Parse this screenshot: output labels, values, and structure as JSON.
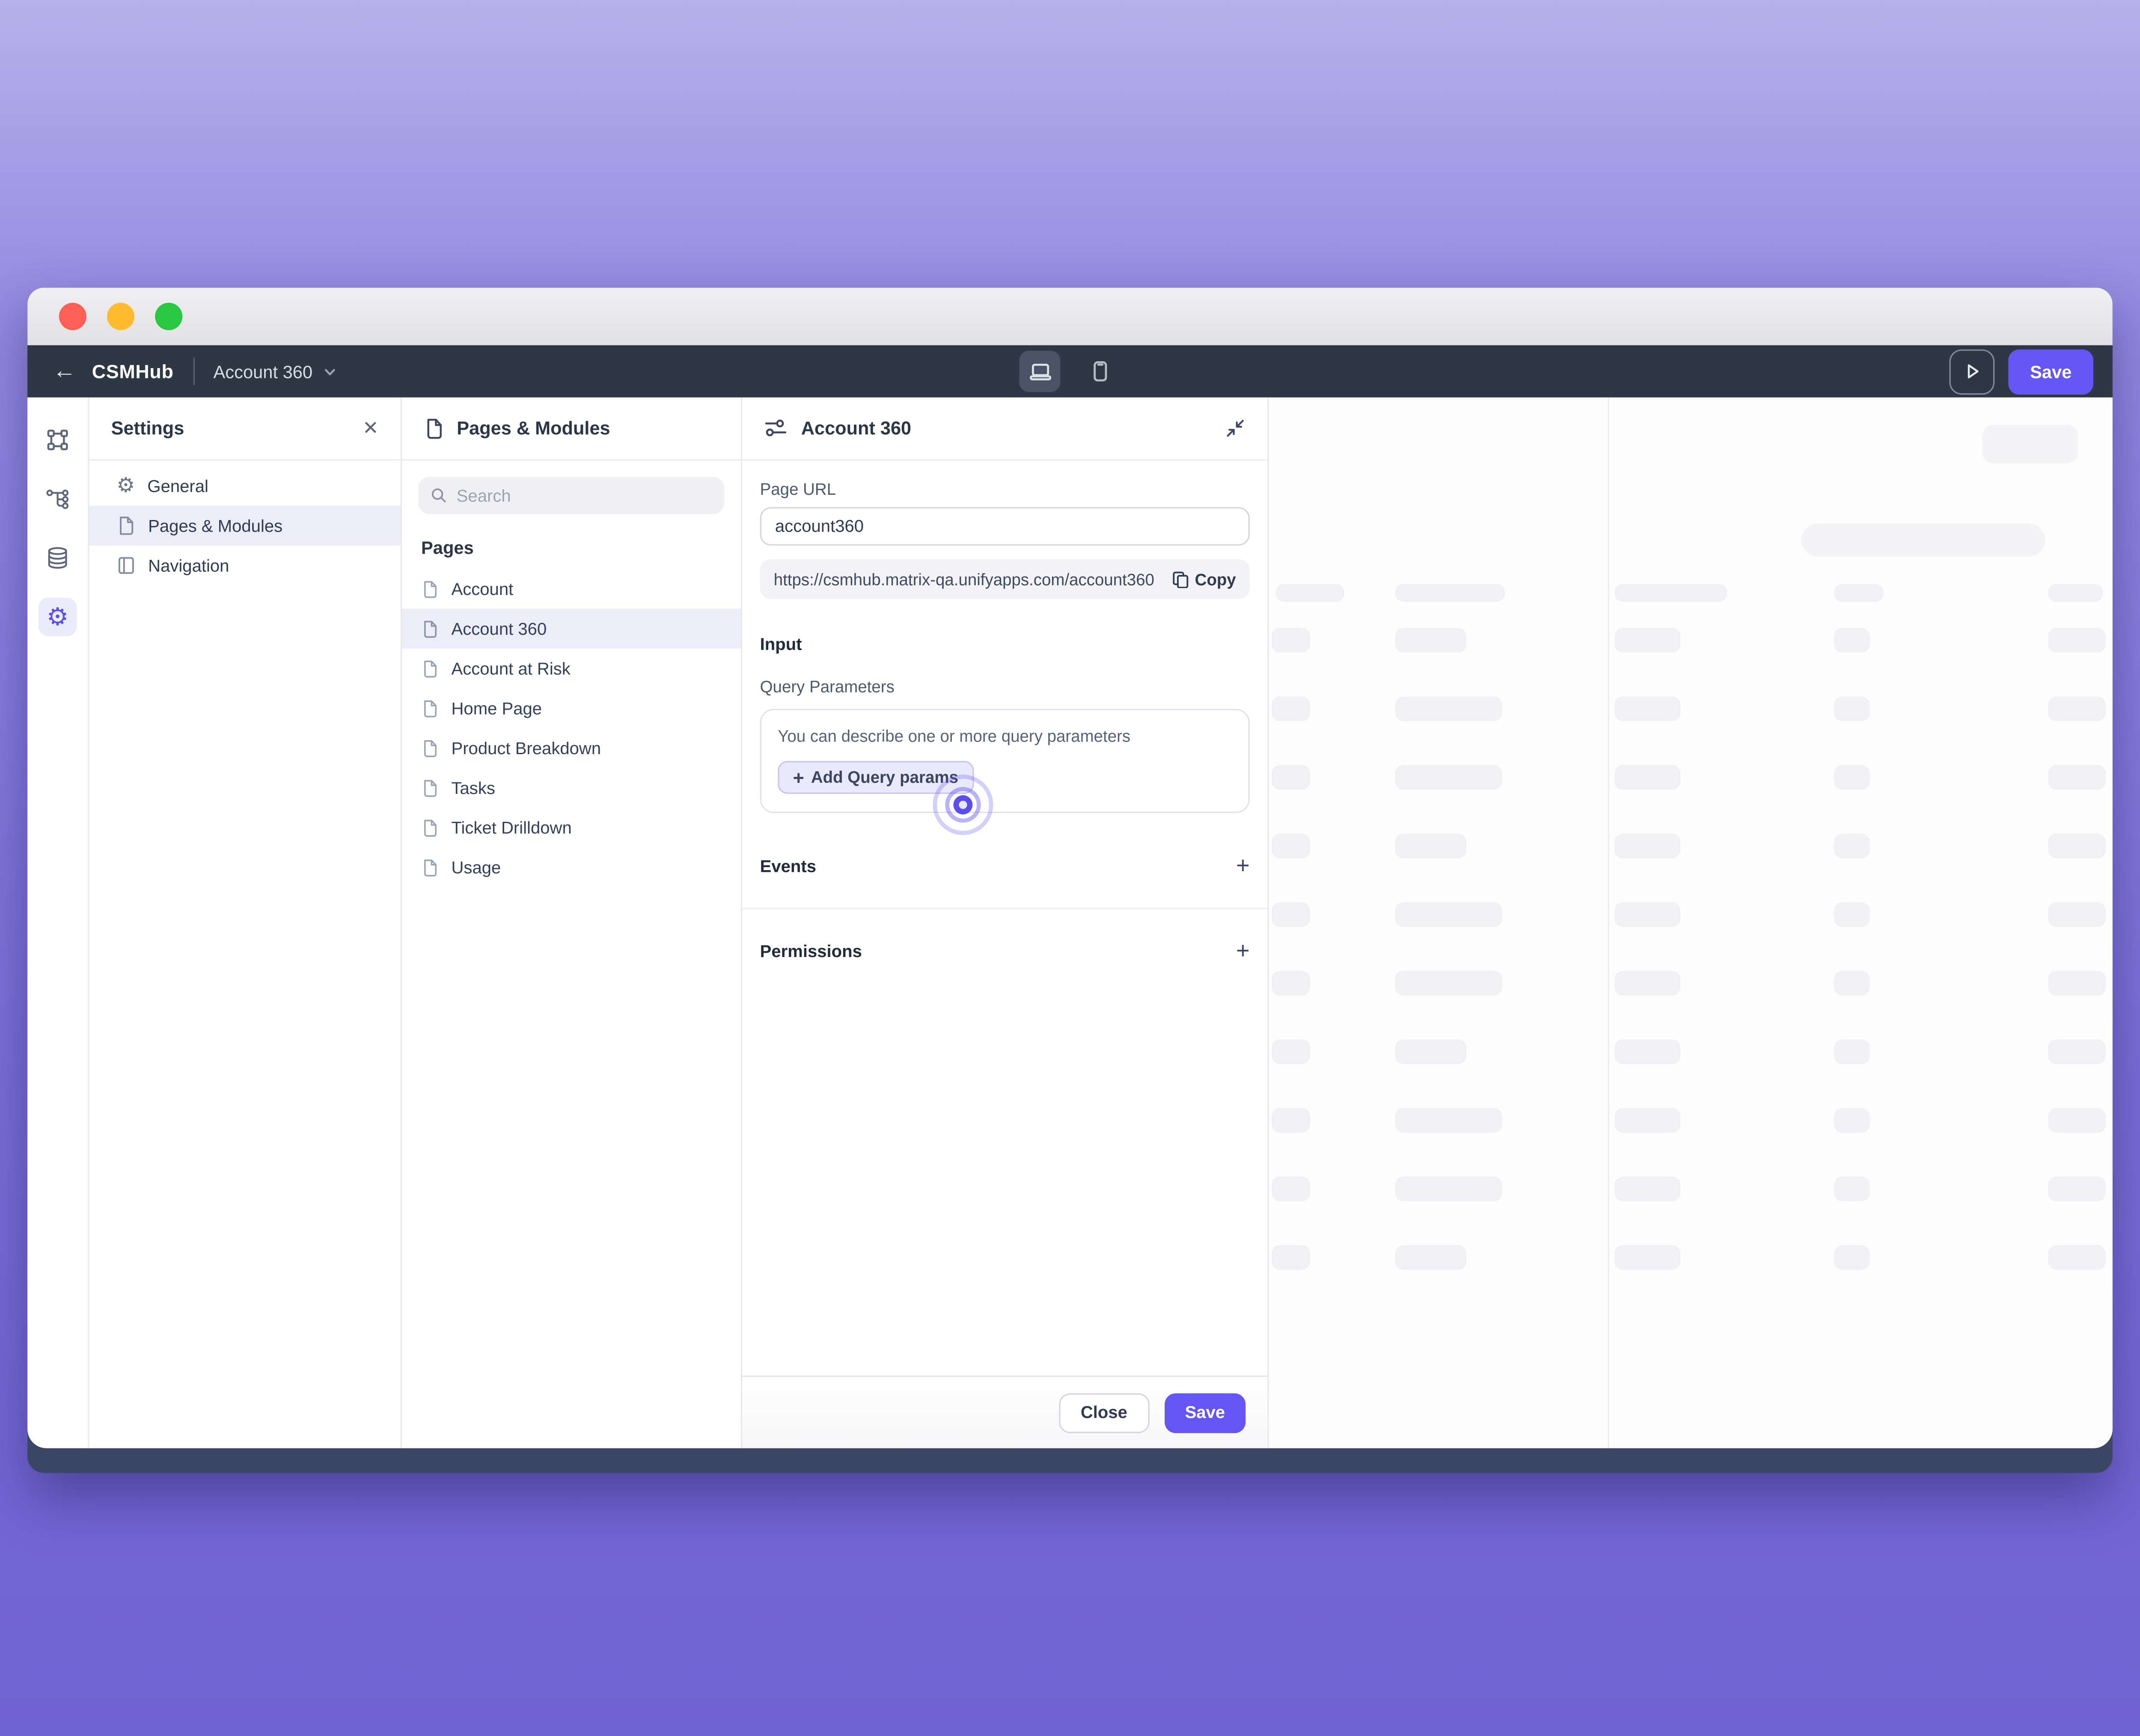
{
  "toolbar": {
    "app_name": "CSMHub",
    "page_selector": "Account 360",
    "save_label": "Save"
  },
  "settings_panel": {
    "title": "Settings",
    "items": [
      {
        "label": "General",
        "icon": "gear-icon"
      },
      {
        "label": "Pages & Modules",
        "icon": "file-icon"
      },
      {
        "label": "Navigation",
        "icon": "layout-icon"
      }
    ],
    "selected_item": "Pages & Modules"
  },
  "pages_panel": {
    "title": "Pages & Modules",
    "search_placeholder": "Search",
    "section_label": "Pages",
    "pages": [
      "Account",
      "Account 360",
      "Account at Risk",
      "Home Page",
      "Product Breakdown",
      "Tasks",
      "Ticket Drilldown",
      "Usage"
    ],
    "selected_page": "Account 360"
  },
  "detail_panel": {
    "title": "Account 360",
    "page_url_label": "Page URL",
    "page_url_value": "account360",
    "full_url": "https://csmhub.matrix-qa.unifyapps.com/account360",
    "copy_label": "Copy",
    "input_section_label": "Input",
    "query_params_label": "Query Parameters",
    "query_params_hint": "You can describe one or more query parameters",
    "add_query_params_label": "Add Query params",
    "events_label": "Events",
    "permissions_label": "Permissions",
    "close_label": "Close",
    "save_label": "Save"
  },
  "colors": {
    "accent": "#6456f5",
    "toolbar_bg": "#2e3744",
    "window_frame": "#3a4663",
    "selected_row_bg": "#edecf9",
    "traffic_red": "#ff5f57",
    "traffic_yellow": "#febc2e",
    "traffic_green": "#28c840"
  }
}
